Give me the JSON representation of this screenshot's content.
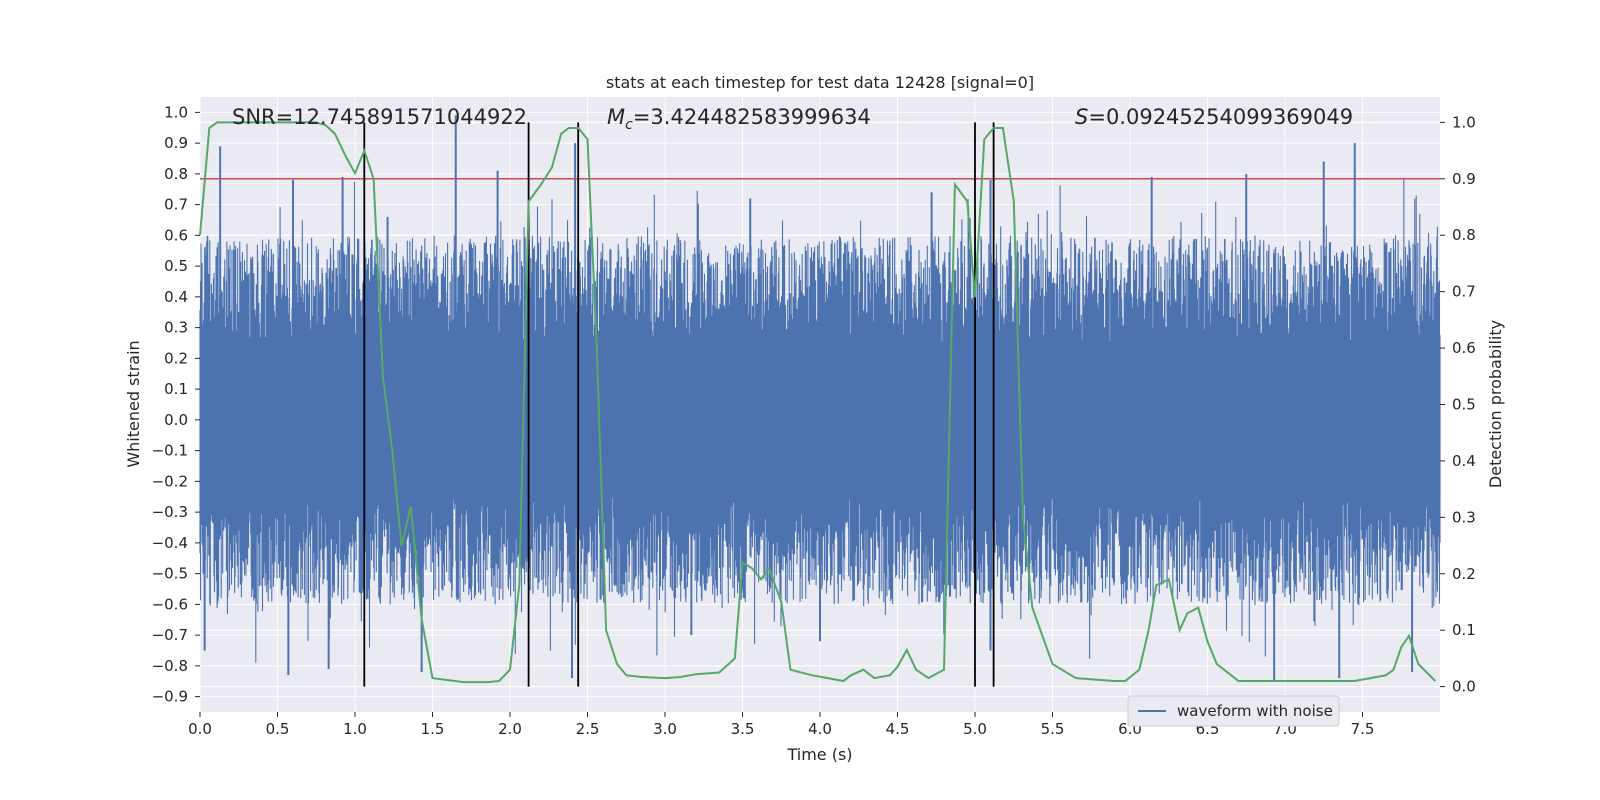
{
  "chart_data": {
    "type": "line",
    "title": "stats at each timestep for test data 12428 [signal=0]",
    "xlabel": "Time (s)",
    "ylabel_left": "Whitened strain",
    "ylabel_right": "Detection probability",
    "xlim": [
      0.0,
      8.0
    ],
    "ylim_left": [
      -0.95,
      1.05
    ],
    "ylim_right": [
      -0.045,
      1.045
    ],
    "x_ticks": [
      "0.0",
      "0.5",
      "1.0",
      "1.5",
      "2.0",
      "2.5",
      "3.0",
      "3.5",
      "4.0",
      "4.5",
      "5.0",
      "5.5",
      "6.0",
      "6.5",
      "7.0",
      "7.5"
    ],
    "y_ticks_left": [
      "1.0",
      "0.9",
      "0.8",
      "0.7",
      "0.6",
      "0.5",
      "0.4",
      "0.3",
      "0.2",
      "0.1",
      "0.0",
      "−0.1",
      "−0.2",
      "−0.3",
      "−0.4",
      "−0.5",
      "−0.6",
      "−0.7",
      "−0.8",
      "−0.9"
    ],
    "y_ticks_right": [
      "1.0",
      "0.9",
      "0.8",
      "0.7",
      "0.6",
      "0.5",
      "0.4",
      "0.3",
      "0.2",
      "0.1",
      "0.0"
    ],
    "grid": true,
    "legend": {
      "position": "lower-right",
      "entries": [
        "waveform with noise"
      ]
    },
    "annotations": {
      "snr": "SNR=12.745891571044922",
      "mc_symbol": "M",
      "mc_sub": "c",
      "mc_value": "=3.424482583999634",
      "s_symbol": "S",
      "s_value": "=0.09245254099369049"
    },
    "colors": {
      "waveform": "#4c72b0",
      "probability": "#55a868",
      "threshold": "#c44e52",
      "event_lines": "#000000",
      "background": "#eaeaf2",
      "grid": "#ffffff"
    },
    "threshold_probability": 0.9,
    "event_lines_x": [
      1.06,
      2.12,
      2.44,
      5.0,
      5.12
    ],
    "waveform_envelope": {
      "x": [
        0.0,
        8.0
      ],
      "typical_peak_range": [
        -0.55,
        0.55
      ],
      "spikes": [
        {
          "x": 0.13,
          "y": 0.89
        },
        {
          "x": 0.6,
          "y": 0.78
        },
        {
          "x": 0.92,
          "y": 0.79
        },
        {
          "x": 1.21,
          "y": 0.66
        },
        {
          "x": 1.65,
          "y": 0.99
        },
        {
          "x": 1.92,
          "y": 0.81
        },
        {
          "x": 2.42,
          "y": 0.9
        },
        {
          "x": 3.55,
          "y": 0.72
        },
        {
          "x": 4.72,
          "y": 0.74
        },
        {
          "x": 5.1,
          "y": 0.78
        },
        {
          "x": 6.14,
          "y": 0.79
        },
        {
          "x": 6.75,
          "y": 0.8
        },
        {
          "x": 7.25,
          "y": 0.84
        },
        {
          "x": 7.45,
          "y": 0.9
        },
        {
          "x": 0.03,
          "y": -0.75
        },
        {
          "x": 0.57,
          "y": -0.83
        },
        {
          "x": 0.83,
          "y": -0.81
        },
        {
          "x": 1.43,
          "y": -0.82
        },
        {
          "x": 2.4,
          "y": -0.84
        },
        {
          "x": 3.17,
          "y": -0.7
        },
        {
          "x": 4.0,
          "y": -0.72
        },
        {
          "x": 5.1,
          "y": -0.75
        },
        {
          "x": 6.93,
          "y": -0.85
        },
        {
          "x": 7.35,
          "y": -0.84
        },
        {
          "x": 7.82,
          "y": -0.82
        }
      ]
    },
    "series": [
      {
        "name": "detection probability",
        "axis": "right",
        "x": [
          0.0,
          0.06,
          0.11,
          0.2,
          0.5,
          0.75,
          0.81,
          0.87,
          0.94,
          1.0,
          1.06,
          1.12,
          1.18,
          1.24,
          1.3,
          1.36,
          1.43,
          1.5,
          1.7,
          1.86,
          1.93,
          2.0,
          2.06,
          2.12,
          2.2,
          2.27,
          2.33,
          2.38,
          2.44,
          2.5,
          2.56,
          2.62,
          2.69,
          2.75,
          2.85,
          3.0,
          3.1,
          3.2,
          3.35,
          3.45,
          3.5,
          3.56,
          3.62,
          3.67,
          3.75,
          3.81,
          3.95,
          4.05,
          4.15,
          4.2,
          4.28,
          4.35,
          4.45,
          4.5,
          4.56,
          4.62,
          4.7,
          4.8,
          4.87,
          4.95,
          5.0,
          5.06,
          5.12,
          5.18,
          5.25,
          5.31,
          5.37,
          5.5,
          5.65,
          5.9,
          5.97,
          6.06,
          6.12,
          6.17,
          6.25,
          6.32,
          6.37,
          6.44,
          6.5,
          6.56,
          6.7,
          6.8,
          7.0,
          7.2,
          7.45,
          7.55,
          7.65,
          7.7,
          7.75,
          7.8,
          7.86,
          7.97
        ],
        "values": [
          0.8,
          0.99,
          1.0,
          1.0,
          1.0,
          1.0,
          0.995,
          0.98,
          0.94,
          0.91,
          0.95,
          0.9,
          0.55,
          0.42,
          0.25,
          0.32,
          0.12,
          0.015,
          0.008,
          0.008,
          0.01,
          0.03,
          0.18,
          0.86,
          0.89,
          0.92,
          0.98,
          0.99,
          0.99,
          0.97,
          0.6,
          0.1,
          0.04,
          0.02,
          0.017,
          0.015,
          0.017,
          0.022,
          0.025,
          0.05,
          0.22,
          0.21,
          0.19,
          0.21,
          0.15,
          0.03,
          0.02,
          0.015,
          0.01,
          0.02,
          0.03,
          0.015,
          0.02,
          0.035,
          0.065,
          0.03,
          0.015,
          0.03,
          0.89,
          0.86,
          0.69,
          0.97,
          0.99,
          0.99,
          0.86,
          0.3,
          0.14,
          0.04,
          0.015,
          0.01,
          0.01,
          0.03,
          0.1,
          0.18,
          0.19,
          0.1,
          0.13,
          0.14,
          0.08,
          0.04,
          0.01,
          0.01,
          0.01,
          0.01,
          0.01,
          0.015,
          0.02,
          0.03,
          0.07,
          0.09,
          0.04,
          0.01
        ]
      },
      {
        "name": "waveform with noise",
        "axis": "left"
      }
    ]
  }
}
